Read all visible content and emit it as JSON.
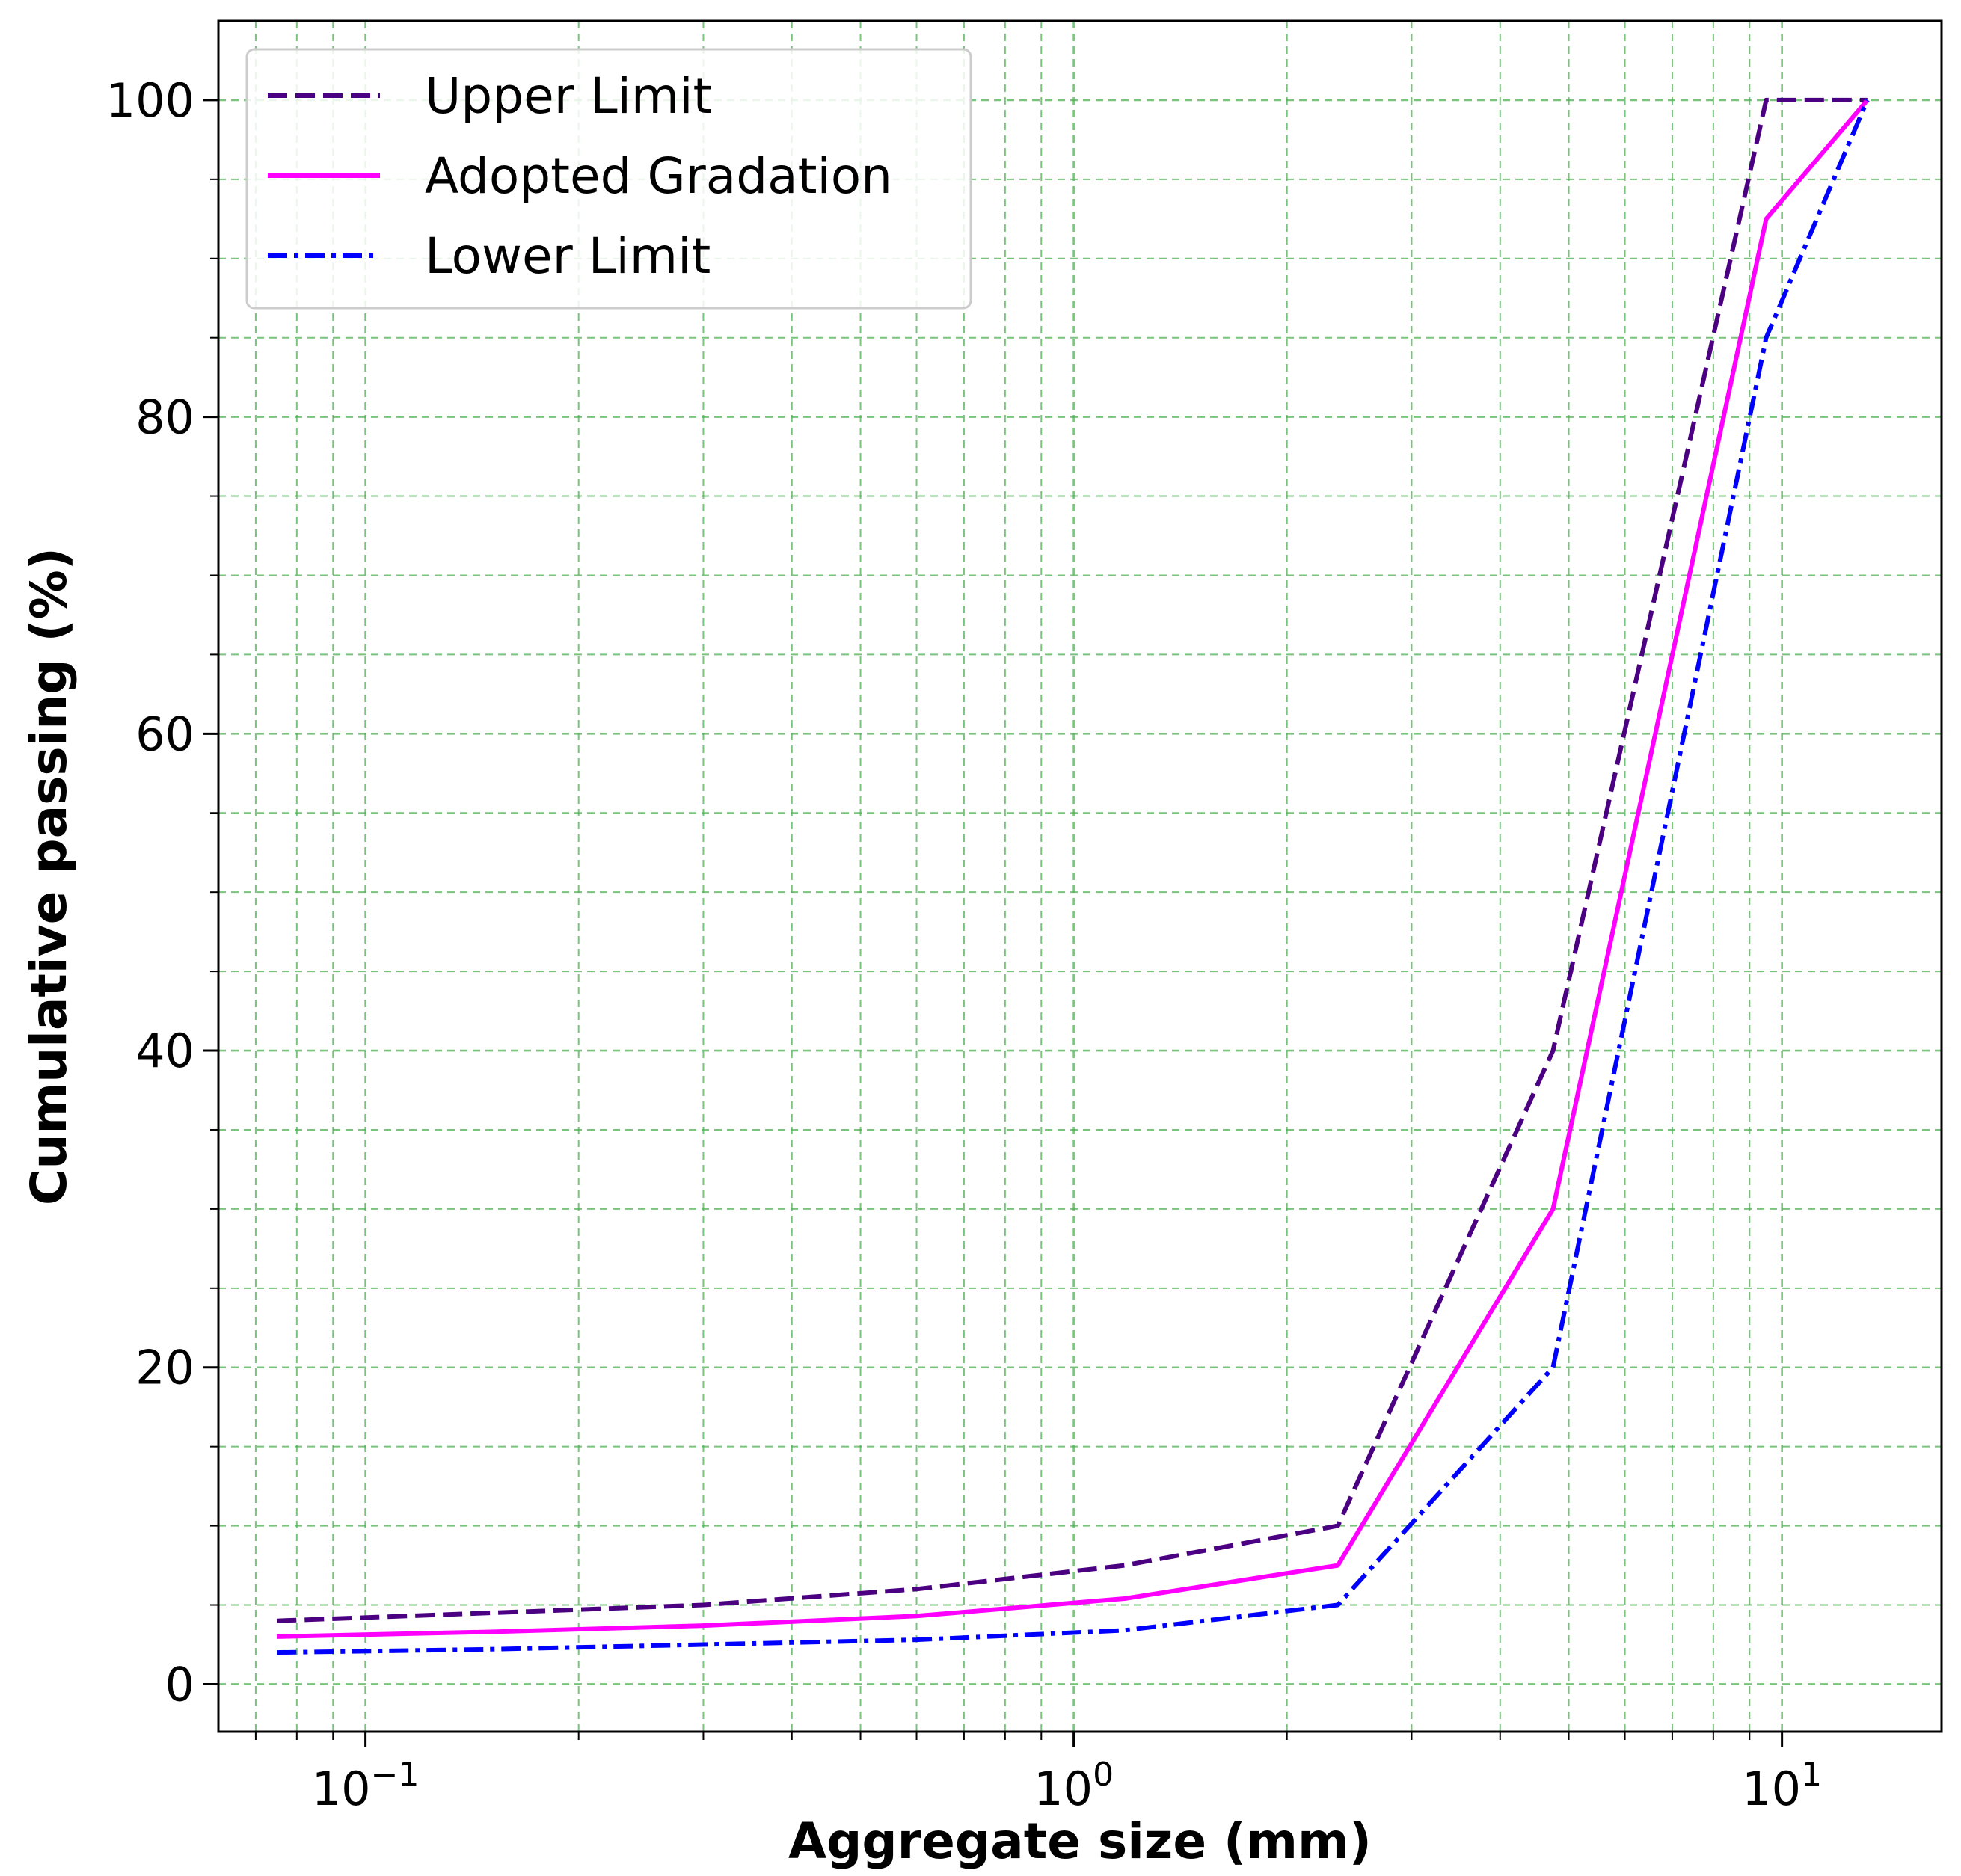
{
  "chart_data": {
    "type": "line",
    "xscale": "log",
    "xlabel": "Aggregate size (mm)",
    "ylabel": "Cumulative passing (%)",
    "xlim": [
      0.062,
      16.8
    ],
    "ylim": [
      -3,
      105
    ],
    "grid": true,
    "grid_style": "dashed",
    "grid_color": "#4caf50",
    "legend_position": "upper-left",
    "x_major_ticks": [
      {
        "value": 0.1,
        "base": "10",
        "exp": "−1"
      },
      {
        "value": 1,
        "base": "10",
        "exp": "0"
      },
      {
        "value": 10,
        "base": "10",
        "exp": "1"
      }
    ],
    "y_ticks": [
      {
        "value": 0,
        "label": "0"
      },
      {
        "value": 20,
        "label": "20"
      },
      {
        "value": 40,
        "label": "40"
      },
      {
        "value": 60,
        "label": "60"
      },
      {
        "value": 80,
        "label": "80"
      },
      {
        "value": 100,
        "label": "100"
      }
    ],
    "x": [
      0.075,
      0.15,
      0.3,
      0.6,
      1.18,
      2.36,
      4.75,
      9.5,
      13.2
    ],
    "series": [
      {
        "name": "Upper Limit",
        "color": "#4b0082",
        "dash": "dashed",
        "values": [
          4,
          4.5,
          5,
          6,
          7.5,
          10,
          40,
          100,
          100
        ]
      },
      {
        "name": "Adopted Gradation",
        "color": "#ff00ff",
        "dash": "solid",
        "values": [
          3,
          3.3,
          3.7,
          4.3,
          5.4,
          7.5,
          30,
          92.5,
          100
        ]
      },
      {
        "name": "Lower Limit",
        "color": "#0000ff",
        "dash": "dashdot",
        "values": [
          2,
          2.2,
          2.5,
          2.8,
          3.4,
          5,
          20,
          85,
          100
        ]
      }
    ]
  }
}
